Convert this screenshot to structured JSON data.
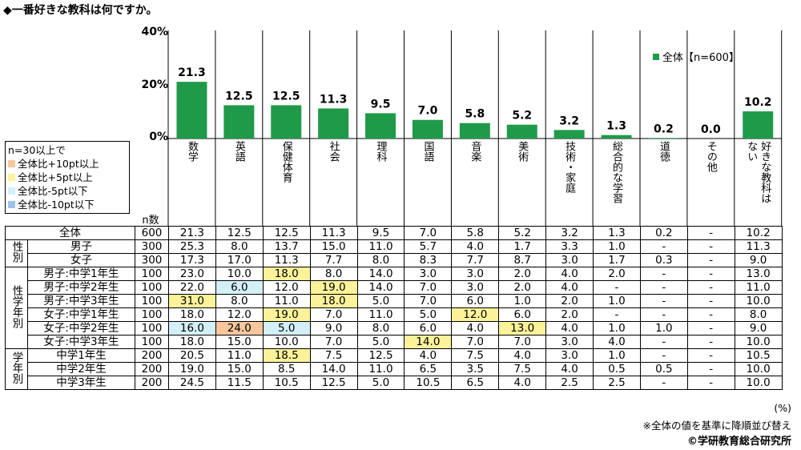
{
  "page": {
    "title": "◆一番好きな教科は何ですか。",
    "n_label": "n数",
    "pct_unit": "(%)",
    "sort_note": "※全体の値を基準に降順並び替え",
    "copyright": "©学研教育総合研究所"
  },
  "legend": {
    "label": "全体【n=600】"
  },
  "highlight_legend": {
    "title": "n=30以上で",
    "items": [
      {
        "label": "全体比+10pt以上",
        "color": "#f7c69d"
      },
      {
        "label": "全体比+5pt以上",
        "color": "#fcf29a"
      },
      {
        "label": "全体比-5pt以下",
        "color": "#d3eff8"
      },
      {
        "label": "全体比-10pt以下",
        "color": "#9dc1ea"
      }
    ]
  },
  "chart_data": {
    "type": "bar",
    "categories": [
      "数学",
      "英語",
      "保健体育",
      "社会",
      "理科",
      "国語",
      "音楽",
      "美術",
      "技術・家庭",
      "総合的な学習",
      "道徳",
      "その他",
      "好きな教科はない"
    ],
    "category_columns": [
      [
        "数学"
      ],
      [
        "英語"
      ],
      [
        "保健体育"
      ],
      [
        "社会"
      ],
      [
        "理科"
      ],
      [
        "国語"
      ],
      [
        "音楽"
      ],
      [
        "美術"
      ],
      [
        "技術・家庭"
      ],
      [
        "総合的な学習"
      ],
      [
        "道徳"
      ],
      [
        "その他"
      ],
      [
        "好きな教科は",
        "ない"
      ]
    ],
    "series": [
      {
        "name": "全体【n=600】",
        "values": [
          21.3,
          12.5,
          12.5,
          11.3,
          9.5,
          7.0,
          5.8,
          5.2,
          3.2,
          1.3,
          0.2,
          0.0,
          10.2
        ]
      }
    ],
    "value_labels": [
      "21.3",
      "12.5",
      "12.5",
      "11.3",
      "9.5",
      "7.0",
      "5.8",
      "5.2",
      "3.2",
      "1.3",
      "0.2",
      "0.0",
      "10.2"
    ],
    "yticks": [
      "40%",
      "20%",
      "0%"
    ],
    "ylim": [
      0,
      40
    ],
    "bar_color": "#1f9a49",
    "legend_position": "top-right"
  },
  "table": {
    "rows": [
      {
        "group": "",
        "label": "全体",
        "n": "600",
        "values": [
          "21.3",
          "12.5",
          "12.5",
          "11.3",
          "9.5",
          "7.0",
          "5.8",
          "5.2",
          "3.2",
          "1.3",
          "0.2",
          "-",
          "10.2"
        ],
        "hl": {}
      },
      {
        "group": "性別",
        "label": "男子",
        "n": "300",
        "values": [
          "25.3",
          "8.0",
          "13.7",
          "15.0",
          "11.0",
          "5.7",
          "4.0",
          "1.7",
          "3.3",
          "1.0",
          "-",
          "-",
          "11.3"
        ],
        "hl": {}
      },
      {
        "group": "",
        "label": "女子",
        "n": "300",
        "values": [
          "17.3",
          "17.0",
          "11.3",
          "7.7",
          "8.0",
          "8.3",
          "7.7",
          "8.7",
          "3.0",
          "1.7",
          "0.3",
          "-",
          "9.0"
        ],
        "hl": {}
      },
      {
        "group": "性学年別",
        "label": "男子:中学1年生",
        "n": "100",
        "values": [
          "23.0",
          "10.0",
          "18.0",
          "8.0",
          "14.0",
          "3.0",
          "3.0",
          "2.0",
          "4.0",
          "2.0",
          "-",
          "-",
          "13.0"
        ],
        "hl": {
          "2": "#fcf29a"
        }
      },
      {
        "group": "",
        "label": "男子:中学2年生",
        "n": "100",
        "values": [
          "22.0",
          "6.0",
          "12.0",
          "19.0",
          "14.0",
          "7.0",
          "3.0",
          "2.0",
          "4.0",
          "-",
          "-",
          "-",
          "11.0"
        ],
        "hl": {
          "1": "#d3eff8",
          "3": "#fcf29a"
        }
      },
      {
        "group": "",
        "label": "男子:中学3年生",
        "n": "100",
        "values": [
          "31.0",
          "8.0",
          "11.0",
          "18.0",
          "5.0",
          "7.0",
          "6.0",
          "1.0",
          "2.0",
          "1.0",
          "-",
          "-",
          "10.0"
        ],
        "hl": {
          "0": "#fcf29a",
          "3": "#fcf29a"
        }
      },
      {
        "group": "",
        "label": "女子:中学1年生",
        "n": "100",
        "values": [
          "18.0",
          "12.0",
          "19.0",
          "7.0",
          "11.0",
          "5.0",
          "12.0",
          "6.0",
          "2.0",
          "-",
          "-",
          "-",
          "8.0"
        ],
        "hl": {
          "2": "#fcf29a",
          "6": "#fcf29a"
        }
      },
      {
        "group": "",
        "label": "女子:中学2年生",
        "n": "100",
        "values": [
          "16.0",
          "24.0",
          "5.0",
          "9.0",
          "8.0",
          "6.0",
          "4.0",
          "13.0",
          "4.0",
          "1.0",
          "1.0",
          "-",
          "9.0"
        ],
        "hl": {
          "0": "#d3eff8",
          "1": "#f7c69d",
          "2": "#d3eff8",
          "7": "#fcf29a"
        }
      },
      {
        "group": "",
        "label": "女子:中学3年生",
        "n": "100",
        "values": [
          "18.0",
          "15.0",
          "10.0",
          "7.0",
          "5.0",
          "14.0",
          "7.0",
          "7.0",
          "3.0",
          "4.0",
          "-",
          "-",
          "10.0"
        ],
        "hl": {
          "5": "#fcf29a"
        }
      },
      {
        "group": "学年別",
        "label": "中学1年生",
        "n": "200",
        "values": [
          "20.5",
          "11.0",
          "18.5",
          "7.5",
          "12.5",
          "4.0",
          "7.5",
          "4.0",
          "3.0",
          "1.0",
          "-",
          "-",
          "10.5"
        ],
        "hl": {
          "2": "#fcf29a"
        }
      },
      {
        "group": "",
        "label": "中学2年生",
        "n": "200",
        "values": [
          "19.0",
          "15.0",
          "8.5",
          "14.0",
          "11.0",
          "6.5",
          "3.5",
          "7.5",
          "4.0",
          "0.5",
          "0.5",
          "-",
          "10.0"
        ],
        "hl": {}
      },
      {
        "group": "",
        "label": "中学3年生",
        "n": "200",
        "values": [
          "24.5",
          "11.5",
          "10.5",
          "12.5",
          "5.0",
          "10.5",
          "6.5",
          "4.0",
          "2.5",
          "2.5",
          "-",
          "-",
          "10.0"
        ],
        "hl": {}
      }
    ],
    "group_spans": {
      "1": 2,
      "3": 6,
      "9": 3
    }
  }
}
